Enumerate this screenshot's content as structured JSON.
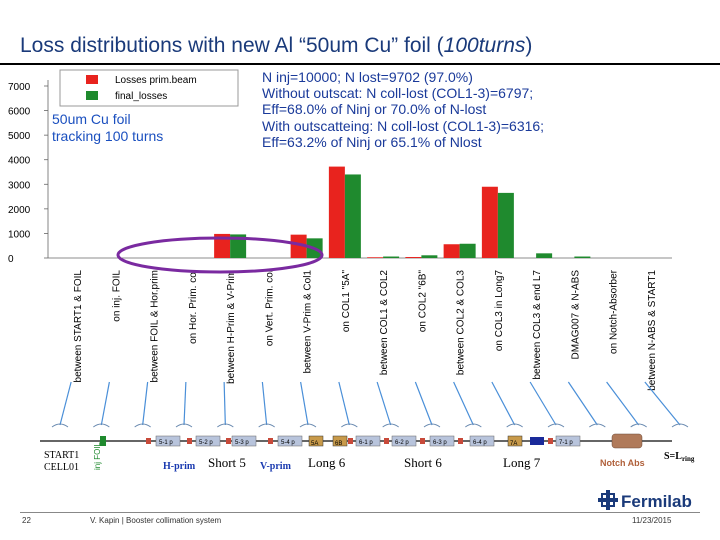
{
  "slide": {
    "title_main": "Loss distributions with new Al “50um Cu” foil (",
    "title_em": "100turns",
    "title_end": ")",
    "page_number": "22",
    "author": "V. Kapin | Booster collimation system",
    "date": "11/23/2015",
    "logo_text": "Fermilab"
  },
  "annotations": {
    "stats_lines": [
      "N inj=10000; N lost=9702 (97.0%)",
      "Without outscat: N coll-lost (COL1-3)=6797;",
      "Eff=68.0% of Ninj or 70.0% of N-lost",
      "With outscatteing: N coll-lost (COL1-3)=6316;",
      "Eff=63.2% of Ninj or 65.1% of Nlost"
    ],
    "foil_label": [
      "50um Cu foil",
      "tracking 100 turns"
    ]
  },
  "chart_data": {
    "type": "bar",
    "ylim": [
      0,
      7000
    ],
    "yticks": [
      0,
      1000,
      2000,
      3000,
      4000,
      5000,
      6000,
      7000
    ],
    "categories": [
      "between START1 & FOIL",
      "on inj. FOIL",
      "between FOIL & Hor.prim",
      "on Hor. Prim. col",
      "between H-Prim & V-Prim",
      "on Vert. Prim. col",
      "between V-Prim & Col1",
      "on COL1 \"5A\"",
      "between COL1 & COL2",
      "on COL2 \"6B\"",
      "between COL2 & COL3",
      "on COL3 in Long7",
      "between COL3 & end L7",
      "DMAG007 & N-ABS",
      "on Notch-Absorber",
      "between N-ABS & START1"
    ],
    "series": [
      {
        "name": "Losses prim.beam",
        "color": "#e8231e",
        "values": [
          0,
          0,
          0,
          0,
          980,
          0,
          950,
          3720,
          30,
          40,
          560,
          2900,
          0,
          0,
          0,
          0
        ]
      },
      {
        "name": "final_losses",
        "color": "#1f8a2e",
        "values": [
          0,
          0,
          0,
          0,
          960,
          0,
          800,
          3400,
          60,
          110,
          580,
          2650,
          190,
          60,
          0,
          0
        ]
      }
    ],
    "legend_position": "top-left",
    "lattice": {
      "start_labels": [
        "START1",
        "CELL01"
      ],
      "foil_label": "inj FOIL",
      "h_prim_label": "H-prim",
      "v_prim_label": "V-prim",
      "short5_magnets": [
        "5-1 p",
        "5-2 p",
        "5-3 p",
        "5-4 p"
      ],
      "long6_blocks": [
        "5A",
        "6B"
      ],
      "short6_magnets": [
        "6-1 p",
        "6-2 p",
        "6-3 p",
        "6-4 p"
      ],
      "long7_block": "7A",
      "after_magnets": [
        "7-1 p"
      ],
      "section_labels": [
        "Short 5",
        "Long 6",
        "Short 6",
        "Long 7"
      ],
      "notch_label": "Notch Abs",
      "ring_end_label": "S=L",
      "ring_end_sub": "ring"
    }
  }
}
